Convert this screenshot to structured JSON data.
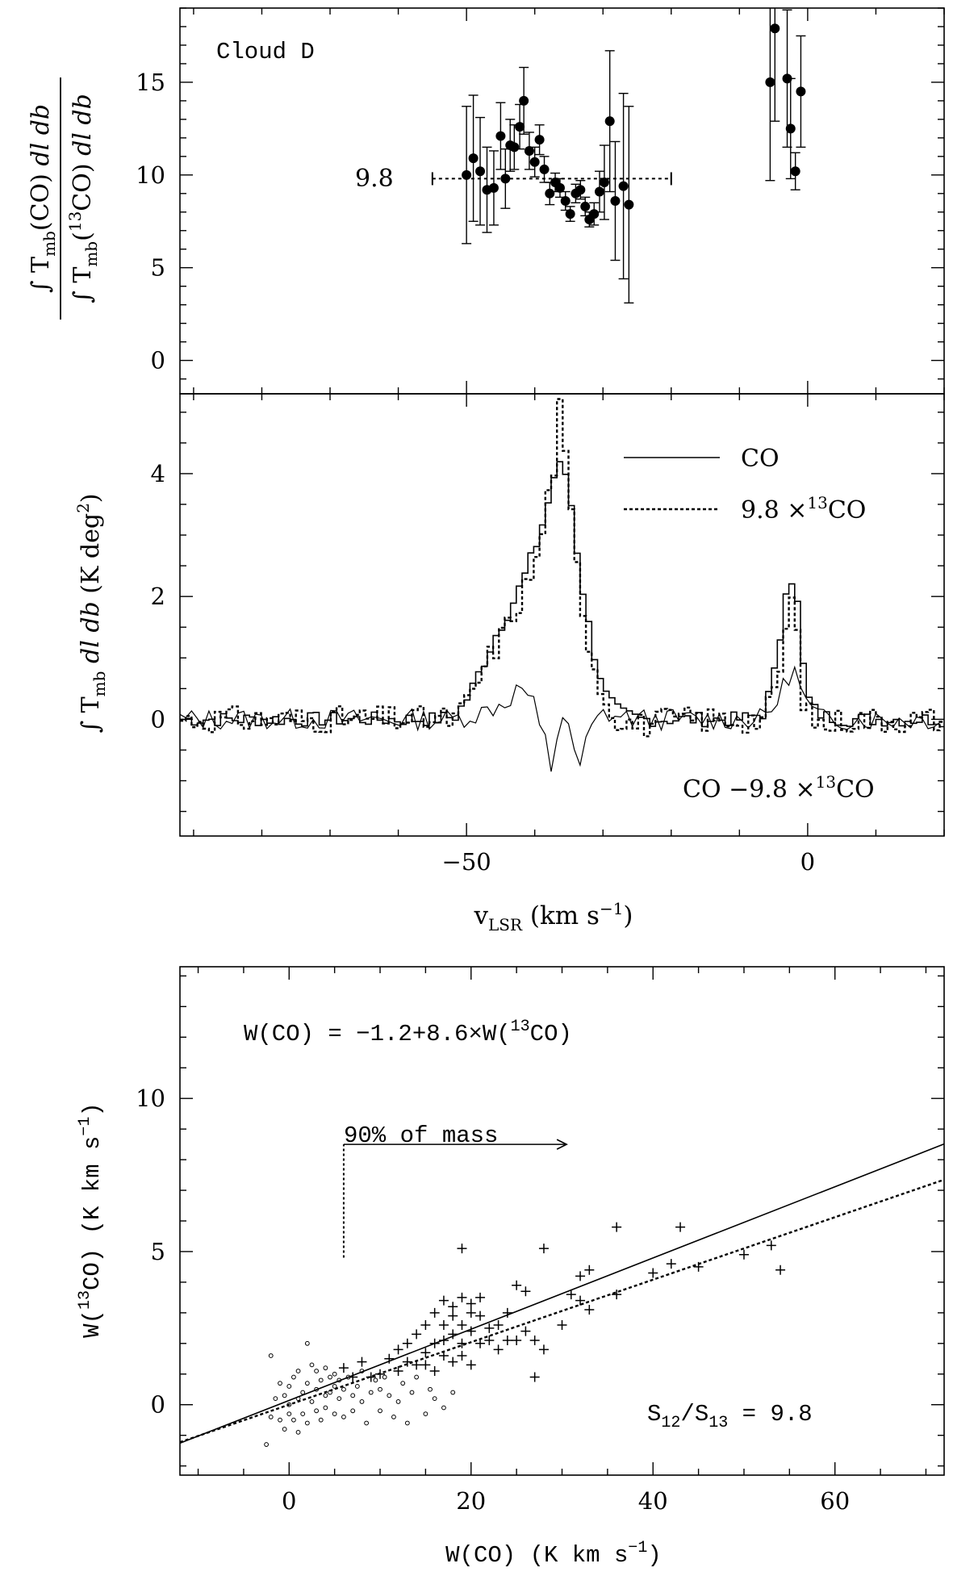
{
  "chart_data": [
    {
      "type": "scatter",
      "panel_label": "Cloud D",
      "ylabel": "∫ Tmb(CO) dl db / ∫ Tmb(13CO) dl db",
      "xlim": [
        -92,
        20
      ],
      "ylim": [
        -1.8,
        19
      ],
      "yticks": [
        "0",
        "5",
        "10",
        "15"
      ],
      "reference_value": 9.8,
      "reference_label": "9.8",
      "reference_range": [
        -55,
        -20
      ],
      "series": [
        {
          "name": "",
          "points": [
            {
              "x": -50,
              "y": 10.0,
              "err": 3.7
            },
            {
              "x": -49,
              "y": 10.9,
              "err": 3.4
            },
            {
              "x": -48,
              "y": 10.2,
              "err": 2.9
            },
            {
              "x": -47,
              "y": 9.2,
              "err": 2.3
            },
            {
              "x": -46,
              "y": 9.3,
              "err": 2.0
            },
            {
              "x": -45,
              "y": 12.1,
              "err": 1.8
            },
            {
              "x": -44.3,
              "y": 9.8,
              "err": 1.6
            },
            {
              "x": -43.6,
              "y": 11.6,
              "err": 1.4
            },
            {
              "x": -43,
              "y": 11.5,
              "err": 1.2
            },
            {
              "x": -42.2,
              "y": 12.6,
              "err": 1.2
            },
            {
              "x": -41.6,
              "y": 14.0,
              "err": 1.8
            },
            {
              "x": -40.8,
              "y": 11.3,
              "err": 1.0
            },
            {
              "x": -40,
              "y": 10.7,
              "err": 0.8
            },
            {
              "x": -39.3,
              "y": 11.9,
              "err": 0.8
            },
            {
              "x": -38.6,
              "y": 10.3,
              "err": 0.7
            },
            {
              "x": -37.8,
              "y": 9.0,
              "err": 0.6
            },
            {
              "x": -37,
              "y": 9.6,
              "err": 0.5
            },
            {
              "x": -36.3,
              "y": 9.3,
              "err": 0.5
            },
            {
              "x": -35.5,
              "y": 8.6,
              "err": 0.5
            },
            {
              "x": -34.8,
              "y": 7.9,
              "err": 0.4
            },
            {
              "x": -34,
              "y": 9.0,
              "err": 0.5
            },
            {
              "x": -33.3,
              "y": 9.2,
              "err": 0.5
            },
            {
              "x": -32.6,
              "y": 8.3,
              "err": 0.5
            },
            {
              "x": -32,
              "y": 7.6,
              "err": 0.4
            },
            {
              "x": -31.3,
              "y": 7.9,
              "err": 0.6
            },
            {
              "x": -30.5,
              "y": 9.1,
              "err": 1.1
            },
            {
              "x": -29.8,
              "y": 9.6,
              "err": 2.0
            },
            {
              "x": -29,
              "y": 12.9,
              "err": 3.8
            },
            {
              "x": -28.2,
              "y": 8.6,
              "err": 3.2
            },
            {
              "x": -27,
              "y": 9.4,
              "err": 5.0
            },
            {
              "x": -26.2,
              "y": 8.4,
              "err": 5.3
            },
            {
              "x": -5.5,
              "y": 15.0,
              "err": 5.3
            },
            {
              "x": -4.8,
              "y": 17.9,
              "err": 5.0
            },
            {
              "x": -3,
              "y": 15.2,
              "err": 3.7
            },
            {
              "x": -2.5,
              "y": 12.5,
              "err": 2.7
            },
            {
              "x": -1.8,
              "y": 10.2,
              "err": 1.0
            },
            {
              "x": -1,
              "y": 14.5,
              "err": 3.0
            }
          ]
        }
      ]
    },
    {
      "type": "line",
      "xlabel": "vLSR (km s−1)",
      "ylabel": "∫ Tmb dl db (K deg2)",
      "xlim": [
        -92,
        20
      ],
      "ylim": [
        -1.9,
        5.3
      ],
      "xticks": [
        "−50",
        "0"
      ],
      "yticks": [
        "0",
        "2",
        "4"
      ],
      "legend": [
        "CO",
        "9.8 ×13CO"
      ],
      "legend_position": "top-right",
      "annotation": "CO −9.8 ×13CO",
      "series": [
        {
          "name": "CO",
          "x": [
            -92,
            -80,
            -70,
            -60,
            -55,
            -52,
            -50,
            -48,
            -46,
            -44,
            -42,
            -40,
            -38.5,
            -37.5,
            -36.5,
            -35.5,
            -34.5,
            -33.5,
            -32,
            -30,
            -28,
            -25,
            -20,
            -15,
            -10,
            -7,
            -5.5,
            -4.5,
            -3.5,
            -2.5,
            -1.8,
            -1,
            0,
            2,
            5,
            10,
            20
          ],
          "y": [
            0,
            0,
            0,
            0,
            0,
            0.05,
            0.4,
            0.9,
            1.4,
            1.8,
            2.3,
            2.9,
            3.5,
            4.0,
            4.15,
            3.9,
            3.0,
            2.2,
            1.2,
            0.4,
            0.1,
            0,
            0,
            0,
            0,
            0.1,
            0.6,
            1.3,
            2.25,
            2.3,
            1.8,
            0.8,
            0.2,
            0.05,
            0,
            0,
            0
          ]
        },
        {
          "name": "9.8 ×13CO",
          "x": [
            -92,
            -80,
            -70,
            -60,
            -55,
            -52,
            -50,
            -48,
            -46,
            -44,
            -42,
            -40,
            -38.5,
            -37.5,
            -36.8,
            -36.3,
            -35.5,
            -34.5,
            -33.5,
            -32,
            -30,
            -28,
            -25,
            -20,
            -15,
            -10,
            -7,
            -5.5,
            -4.5,
            -3.5,
            -2.5,
            -1.8,
            -1,
            0,
            2,
            5,
            10,
            20
          ],
          "y": [
            0,
            0,
            0,
            0,
            0,
            0,
            0.3,
            0.8,
            1.2,
            1.6,
            2.1,
            2.6,
            3.6,
            4.2,
            5.1,
            4.6,
            3.8,
            2.7,
            1.9,
            1.0,
            0.3,
            0,
            -0.1,
            0,
            0,
            0,
            0,
            0.3,
            0.8,
            1.5,
            2.1,
            1.2,
            0.3,
            0,
            -0.1,
            0,
            0,
            0
          ]
        },
        {
          "name": "CO −9.8 ×13CO",
          "x": [
            -92,
            -80,
            -70,
            -60,
            -55,
            -52,
            -50,
            -48,
            -46,
            -44,
            -42,
            -40,
            -39,
            -38,
            -37.5,
            -36.8,
            -36,
            -35.2,
            -34.5,
            -33.5,
            -32,
            -30,
            -28,
            -25,
            -20,
            -15,
            -10,
            -7,
            -5,
            -4,
            -3,
            -2,
            -1,
            0,
            2,
            5,
            10,
            20
          ],
          "y": [
            0,
            0,
            0,
            0,
            0,
            0,
            0.05,
            0.1,
            0.2,
            0.3,
            0.55,
            0.2,
            -0.3,
            -0.4,
            -0.9,
            -0.3,
            0.1,
            0.05,
            -0.55,
            -0.8,
            -0.2,
            0.1,
            0.05,
            0,
            0,
            0,
            0,
            0,
            0.2,
            0.4,
            0.7,
            0.8,
            0.5,
            0.2,
            0,
            0,
            0,
            0
          ]
        }
      ]
    },
    {
      "type": "scatter",
      "xlabel": "W(CO) (K km s−1)",
      "ylabel": "W(13CO) (K km s−1)",
      "xlim": [
        -12,
        72
      ],
      "ylim": [
        -2.3,
        14.3
      ],
      "xticks": [
        "0",
        "20",
        "40",
        "60"
      ],
      "yticks": [
        "0",
        "5",
        "10"
      ],
      "fit_label": "W(CO) = −1.2+8.6×W(13CO)",
      "ratio_label": "S12/S13 = 9.8",
      "mass_label": "90% of mass",
      "mass_cut_x": 6,
      "fit_line": {
        "intercept_x": -1.2,
        "slope": 8.6
      },
      "ratio_line": {
        "slope": 9.8
      },
      "series": [
        {
          "name": "",
          "marker": "plus",
          "points": [
            [
              6,
              1.2
            ],
            [
              7,
              0.9
            ],
            [
              8,
              1.4
            ],
            [
              9,
              0.9
            ],
            [
              10,
              1.0
            ],
            [
              11,
              1.5
            ],
            [
              12,
              1.8
            ],
            [
              12,
              1.1
            ],
            [
              13,
              2.0
            ],
            [
              13,
              1.4
            ],
            [
              14,
              1.3
            ],
            [
              14,
              2.3
            ],
            [
              15,
              1.7
            ],
            [
              15,
              2.6
            ],
            [
              15,
              1.3
            ],
            [
              16,
              2.0
            ],
            [
              16,
              3.0
            ],
            [
              16,
              1.1
            ],
            [
              17,
              2.6
            ],
            [
              17,
              1.6
            ],
            [
              17,
              3.4
            ],
            [
              17,
              2.1
            ],
            [
              18,
              2.3
            ],
            [
              18,
              3.2
            ],
            [
              18,
              1.4
            ],
            [
              18,
              2.9
            ],
            [
              19,
              3.5
            ],
            [
              19,
              2.0
            ],
            [
              19,
              2.6
            ],
            [
              19,
              5.1
            ],
            [
              19,
              1.6
            ],
            [
              20,
              3.3
            ],
            [
              20,
              2.4
            ],
            [
              20,
              1.3
            ],
            [
              20,
              3.0
            ],
            [
              21,
              2.0
            ],
            [
              21,
              3.5
            ],
            [
              21,
              2.9
            ],
            [
              22,
              2.5
            ],
            [
              22,
              2.1
            ],
            [
              23,
              2.6
            ],
            [
              23,
              1.8
            ],
            [
              24,
              2.1
            ],
            [
              24,
              3.0
            ],
            [
              25,
              3.9
            ],
            [
              25,
              2.1
            ],
            [
              26,
              3.7
            ],
            [
              26,
              2.4
            ],
            [
              27,
              0.9
            ],
            [
              27,
              2.1
            ],
            [
              28,
              1.8
            ],
            [
              28,
              5.1
            ],
            [
              30,
              2.6
            ],
            [
              31,
              3.6
            ],
            [
              32,
              4.2
            ],
            [
              32,
              3.4
            ],
            [
              33,
              4.4
            ],
            [
              33,
              3.1
            ],
            [
              36,
              3.6
            ],
            [
              36,
              5.8
            ],
            [
              40,
              4.3
            ],
            [
              42,
              4.6
            ],
            [
              43,
              5.8
            ],
            [
              45,
              4.5
            ],
            [
              50,
              4.9
            ],
            [
              53,
              5.2
            ],
            [
              54,
              4.4
            ]
          ]
        },
        {
          "name": "",
          "marker": "circle",
          "points": [
            [
              -2.5,
              -1.3
            ],
            [
              -2,
              -0.4
            ],
            [
              -2,
              1.6
            ],
            [
              -1.5,
              0.2
            ],
            [
              -1,
              0.7
            ],
            [
              -1,
              -0.5
            ],
            [
              -0.5,
              0.3
            ],
            [
              -0.5,
              -0.8
            ],
            [
              0,
              0.0
            ],
            [
              0,
              -0.3
            ],
            [
              0,
              0.6
            ],
            [
              0.5,
              -0.5
            ],
            [
              0.5,
              0.9
            ],
            [
              1,
              0.2
            ],
            [
              1,
              -0.9
            ],
            [
              1,
              1.1
            ],
            [
              1.5,
              0.4
            ],
            [
              1.5,
              -0.3
            ],
            [
              2,
              0.7
            ],
            [
              2,
              2.0
            ],
            [
              2,
              -0.6
            ],
            [
              2.5,
              0.1
            ],
            [
              2.5,
              1.3
            ],
            [
              3,
              0.5
            ],
            [
              3,
              -0.2
            ],
            [
              3,
              1.1
            ],
            [
              3.5,
              0.8
            ],
            [
              3.5,
              -0.5
            ],
            [
              4,
              0.3
            ],
            [
              4,
              1.2
            ],
            [
              4,
              -0.1
            ],
            [
              4.5,
              0.9
            ],
            [
              4.5,
              0.4
            ],
            [
              5,
              0.6
            ],
            [
              5,
              -0.3
            ],
            [
              5,
              1.0
            ],
            [
              5.5,
              0.2
            ],
            [
              5.5,
              0.8
            ],
            [
              6,
              0.5
            ],
            [
              6,
              -0.4
            ],
            [
              6.5,
              0.9
            ],
            [
              7,
              0.3
            ],
            [
              7,
              -0.2
            ],
            [
              7.5,
              0.6
            ],
            [
              8,
              1.1
            ],
            [
              8,
              0.1
            ],
            [
              8.5,
              -0.6
            ],
            [
              9,
              0.4
            ],
            [
              9.5,
              0.8
            ],
            [
              10,
              -0.2
            ],
            [
              10,
              0.5
            ],
            [
              10.5,
              0.9
            ],
            [
              11,
              0.3
            ],
            [
              11.5,
              -0.4
            ],
            [
              12,
              0.1
            ],
            [
              12.5,
              0.7
            ],
            [
              13,
              -0.6
            ],
            [
              13.5,
              0.4
            ],
            [
              14,
              0.9
            ],
            [
              15,
              -0.3
            ],
            [
              15.5,
              0.5
            ],
            [
              16,
              0.2
            ],
            [
              17,
              -0.1
            ],
            [
              18,
              0.4
            ]
          ]
        }
      ]
    }
  ]
}
